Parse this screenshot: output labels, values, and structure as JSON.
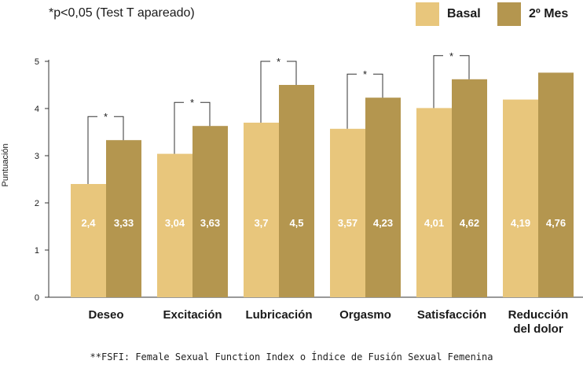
{
  "note": "*p<0,05 (Test T apareado)",
  "footnote": "**FSFI: Female Sexual Function Index o Índice de Fusión Sexual Femenina",
  "colors": {
    "basal": "#e8c67c",
    "mes2": "#b4964f",
    "axis": "#333333",
    "label_text": "#ffffff"
  },
  "chart_data": {
    "type": "bar",
    "ylabel": "Puntuación",
    "ylim": [
      0,
      5
    ],
    "yticks": [
      "0",
      "1",
      "2",
      "3",
      "4",
      "5"
    ],
    "grid": false,
    "legend_position": "top-right",
    "categories": [
      "Deseo",
      "Excitación",
      "Lubricación",
      "Orgasmo",
      "Satisfacción",
      "Reducción del dolor"
    ],
    "category_lines": [
      [
        "Deseo"
      ],
      [
        "Excitación"
      ],
      [
        "Lubricación"
      ],
      [
        "Orgasmo"
      ],
      [
        "Satisfacción"
      ],
      [
        "Reducción",
        "del dolor"
      ]
    ],
    "series": [
      {
        "name": "Basal",
        "values": [
          2.4,
          3.04,
          3.7,
          3.57,
          4.01,
          4.19
        ],
        "labels": [
          "2,4",
          "3,04",
          "3,7",
          "3,57",
          "4,01",
          "4,19"
        ]
      },
      {
        "name": "2º Mes",
        "values": [
          3.33,
          3.63,
          4.5,
          4.23,
          4.62,
          4.76
        ],
        "labels": [
          "3,33",
          "3,63",
          "4,5",
          "4,23",
          "4,62",
          "4,76"
        ]
      }
    ],
    "significance": [
      {
        "category": "Deseo",
        "label": "*"
      },
      {
        "category": "Excitación",
        "label": "*"
      },
      {
        "category": "Lubricación",
        "label": "*"
      },
      {
        "category": "Orgasmo",
        "label": "*"
      },
      {
        "category": "Satisfacción",
        "label": "*"
      }
    ]
  }
}
